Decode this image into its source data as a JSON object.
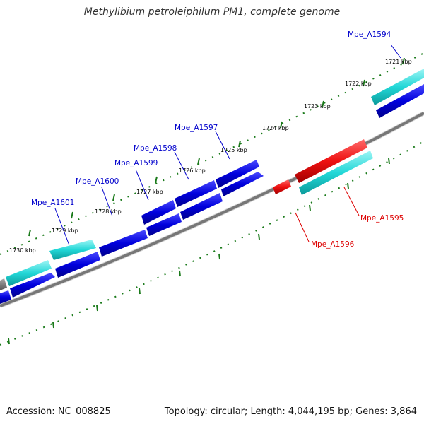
{
  "title": "Methylibium petroleiphilum PM1, complete genome",
  "footer": {
    "accession": "Accession: NC_008825",
    "summary": "Topology: circular; Length: 4,044,195 bp; Genes: 3,864"
  },
  "colors": {
    "forward_cds": "#0000dd",
    "rna_forward": "#22d7d7",
    "reverse_cds": "#ee1111",
    "rna_reverse": "#22d7d7",
    "backbone": "#777777",
    "ticks": "#1a7a1a",
    "label_forward": "#0000cc",
    "label_reverse": "#dd0000"
  },
  "position_labels": [
    "1721 kbp",
    "1722 kbp",
    "1723 kbp",
    "1724 kbp",
    "1725 kbp",
    "1726 kbp",
    "1727 kbp",
    "1728 kbp",
    "1729 kbp",
    "1730 kbp"
  ],
  "gene_labels": [
    {
      "name": "Mpe_A1594",
      "strand": "forward"
    },
    {
      "name": "Mpe_A1597",
      "strand": "forward"
    },
    {
      "name": "Mpe_A1598",
      "strand": "forward"
    },
    {
      "name": "Mpe_A1599",
      "strand": "forward"
    },
    {
      "name": "Mpe_A1600",
      "strand": "forward"
    },
    {
      "name": "Mpe_A1601",
      "strand": "forward"
    },
    {
      "name": "Mpe_A1595",
      "strand": "reverse"
    },
    {
      "name": "Mpe_A1596",
      "strand": "reverse"
    }
  ]
}
